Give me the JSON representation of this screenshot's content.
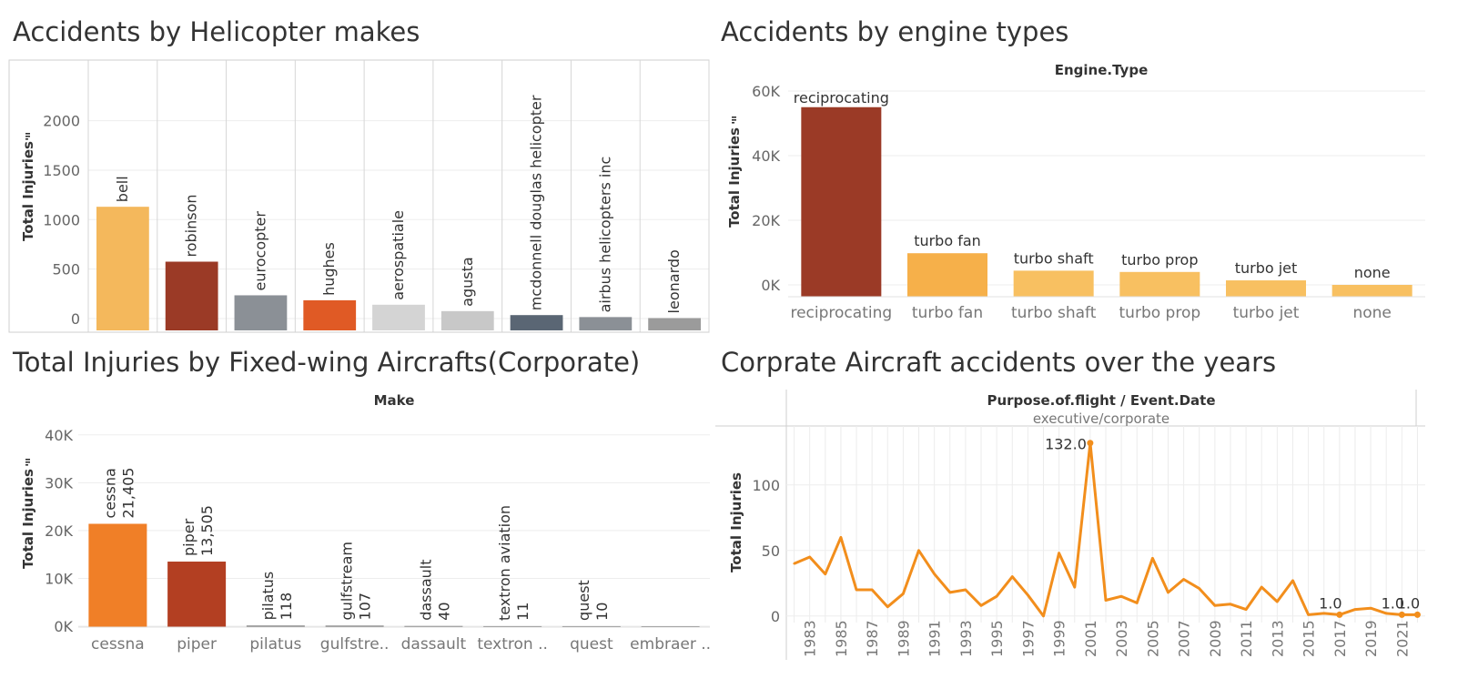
{
  "titles": {
    "helicopter": "Accidents by Helicopter makes",
    "engine": "Accidents by engine types",
    "fixedwing": "Total Injuries by Fixed-wing Aircrafts(Corporate)",
    "corporate": "Corprate Aircraft accidents over the years"
  },
  "chart_data": [
    {
      "id": "helicopter",
      "type": "bar",
      "title": "Accidents by Helicopter makes",
      "ylabel": "Total Injuries",
      "sort_icon": "sort-descending-icon",
      "categories": [
        "bell",
        "robinson",
        "eurocopter",
        "hughes",
        "aerospatiale",
        "agusta",
        "mcdonnell douglas helicopter",
        "airbus helicopters inc",
        "leonardo"
      ],
      "values": [
        1130,
        575,
        235,
        185,
        140,
        75,
        35,
        15,
        5
      ],
      "colors": [
        "#f4b85c",
        "#9b3a26",
        "#8b9096",
        "#e05a25",
        "#d4d4d4",
        "#c8c8c8",
        "#5a6674",
        "#8b9096",
        "#9b9b9b"
      ],
      "yticks": [
        "0",
        "500",
        "1000",
        "1500",
        "2000"
      ],
      "ytick_values": [
        0,
        500,
        1000,
        1500,
        2000
      ],
      "ylim": [
        0,
        2300
      ],
      "legend": "none",
      "grid": true
    },
    {
      "id": "engine",
      "type": "bar",
      "title": "Accidents by engine types",
      "header": "Engine.Type",
      "ylabel": "Total Injuries",
      "sort_icon": "sort-descending-icon",
      "categories": [
        "reciprocating",
        "turbo fan",
        "turbo shaft",
        "turbo prop",
        "turbo jet",
        "none"
      ],
      "values": [
        55000,
        9800,
        4400,
        4000,
        1400,
        0
      ],
      "colors": [
        "#9b3a26",
        "#f6b04a",
        "#f8c061",
        "#f8c061",
        "#f8c061",
        "#f8c061"
      ],
      "yticks": [
        "0K",
        "20K",
        "40K",
        "60K"
      ],
      "ytick_values": [
        0,
        20000,
        40000,
        60000
      ],
      "ylim": [
        0,
        60000
      ],
      "legend": "none",
      "grid": true
    },
    {
      "id": "fixedwing",
      "type": "bar",
      "title": "Total Injuries by Fixed-wing Aircrafts(Corporate)",
      "header": "Make",
      "ylabel": "Total Injuries",
      "sort_icon": "sort-descending-icon",
      "categories": [
        "cessna",
        "piper",
        "pilatus",
        "gulfstream",
        "dassault",
        "textron aviation",
        "quest",
        "embraer"
      ],
      "category_labels": [
        "cessna",
        "piper",
        "pilatus",
        "gulfstre..",
        "dassault",
        "textron ..",
        "quest",
        "embraer .."
      ],
      "values": [
        21405,
        13505,
        118,
        107,
        40,
        11,
        10,
        0
      ],
      "value_labels": [
        "21,405",
        "13,505",
        "118",
        "107",
        "40",
        "11",
        "10",
        ""
      ],
      "colors": [
        "#f07f27",
        "#b33f22",
        "#6d6d6d",
        "#6d6d6d",
        "#6d6d6d",
        "#6d6d6d",
        "#6d6d6d",
        "#6d6d6d"
      ],
      "yticks": [
        "0K",
        "10K",
        "20K",
        "30K",
        "40K"
      ],
      "ytick_values": [
        0,
        10000,
        20000,
        30000,
        40000
      ],
      "ylim": [
        0,
        43000
      ],
      "legend": "none",
      "grid": true
    },
    {
      "id": "corporate",
      "type": "line",
      "title": "Corprate Aircraft accidents over the years",
      "header": "Purpose.of.flight  /  Event.Date",
      "subheader": "executive/corporate",
      "ylabel": "Total Injuries",
      "x": [
        1982,
        1983,
        1984,
        1985,
        1986,
        1987,
        1988,
        1989,
        1990,
        1991,
        1992,
        1993,
        1994,
        1995,
        1996,
        1997,
        1998,
        1999,
        2000,
        2001,
        2002,
        2003,
        2004,
        2005,
        2006,
        2007,
        2008,
        2009,
        2010,
        2011,
        2012,
        2013,
        2014,
        2015,
        2016,
        2017,
        2018,
        2019,
        2020,
        2021,
        2022
      ],
      "y": [
        40,
        45,
        32,
        60,
        20,
        20,
        7,
        17,
        50,
        32,
        18,
        20,
        8,
        15,
        30,
        16,
        0,
        48,
        22,
        132,
        12,
        15,
        10,
        44,
        18,
        28,
        21,
        8,
        9,
        5,
        22,
        11,
        27,
        1,
        2,
        1,
        5,
        6,
        2,
        1,
        1
      ],
      "annotations": [
        {
          "x": 2001,
          "label": "132.0"
        },
        {
          "x": 2017,
          "label": "1.0"
        },
        {
          "x": 2021,
          "label": "1.0"
        },
        {
          "x": 2022,
          "label": "1.0"
        }
      ],
      "xticks": [
        "1983",
        "1985",
        "1987",
        "1989",
        "1991",
        "1993",
        "1995",
        "1997",
        "1999",
        "2001",
        "2003",
        "2005",
        "2007",
        "2009",
        "2011",
        "2013",
        "2015",
        "2017",
        "2019",
        "2021"
      ],
      "xtick_values": [
        1983,
        1985,
        1987,
        1989,
        1991,
        1993,
        1995,
        1997,
        1999,
        2001,
        2003,
        2005,
        2007,
        2009,
        2011,
        2013,
        2015,
        2017,
        2019,
        2021
      ],
      "yticks": [
        "0",
        "50",
        "100"
      ],
      "ytick_values": [
        0,
        50,
        100
      ],
      "xlim": [
        1981.5,
        2022.5
      ],
      "ylim": [
        -5,
        145
      ],
      "color": "#f28e1c",
      "legend": "none",
      "grid": true
    }
  ]
}
